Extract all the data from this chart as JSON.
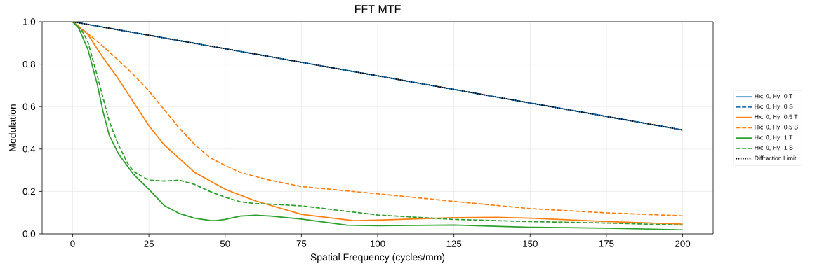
{
  "chart_data": {
    "type": "line",
    "title": "FFT MTF",
    "xlabel": "Spatial Frequency (cycles/mm)",
    "ylabel": "Modulation",
    "xlim": [
      -10,
      210
    ],
    "ylim": [
      0,
      1
    ],
    "xticks": [
      0,
      25,
      50,
      75,
      100,
      125,
      150,
      175,
      200
    ],
    "yticks": [
      {
        "value": 0,
        "label": "0.0"
      },
      {
        "value": 0.2,
        "label": "0.2"
      },
      {
        "value": 0.4,
        "label": "0.4"
      },
      {
        "value": 0.6,
        "label": "0.6"
      },
      {
        "value": 0.8,
        "label": "0.8"
      },
      {
        "value": 1,
        "label": "1.0"
      }
    ],
    "grid": true,
    "legend": "right",
    "series": [
      {
        "name": "Hx: 0, Hy: 0 T",
        "color": "#1f77b4",
        "line_style": "solid",
        "x": [
          0,
          50,
          100,
          150,
          200
        ],
        "values": [
          1,
          0.873,
          0.745,
          0.617,
          0.49
        ]
      },
      {
        "name": "Hx: 0, Hy: 0 S",
        "color": "#1f77b4",
        "line_style": "dashed",
        "x": [
          0,
          50,
          100,
          150,
          200
        ],
        "values": [
          1,
          0.873,
          0.745,
          0.617,
          0.49
        ]
      },
      {
        "name": "Hx: 0, Hy: 0.5 T",
        "color": "#ff7f0e",
        "line_style": "solid",
        "x": [
          0,
          5,
          10,
          15,
          20,
          25,
          30,
          40,
          50,
          60,
          75,
          92,
          100,
          125,
          139,
          150,
          175,
          200
        ],
        "values": [
          1,
          0.94,
          0.83,
          0.73,
          0.62,
          0.51,
          0.42,
          0.29,
          0.21,
          0.155,
          0.092,
          0.062,
          0.065,
          0.076,
          0.078,
          0.074,
          0.058,
          0.046
        ]
      },
      {
        "name": "Hx: 0, Hy: 0.5 S",
        "color": "#ff7f0e",
        "line_style": "dashed",
        "x": [
          0,
          5,
          10,
          15,
          20,
          25,
          30,
          35,
          40,
          45,
          50,
          55,
          60,
          65,
          75,
          100,
          125,
          150,
          175,
          200
        ],
        "values": [
          1,
          0.944,
          0.884,
          0.818,
          0.75,
          0.674,
          0.586,
          0.498,
          0.421,
          0.36,
          0.322,
          0.29,
          0.27,
          0.252,
          0.223,
          0.189,
          0.153,
          0.119,
          0.099,
          0.085
        ]
      },
      {
        "name": "Hx: 0, Hy: 1 T",
        "color": "#2ca02c",
        "line_style": "solid",
        "x": [
          0,
          2,
          5,
          8,
          10,
          12,
          15,
          20,
          25,
          30,
          35,
          40,
          45,
          47,
          50,
          55,
          60,
          65,
          75,
          90,
          100,
          125,
          150,
          175,
          200
        ],
        "values": [
          1,
          0.97,
          0.87,
          0.71,
          0.575,
          0.465,
          0.378,
          0.28,
          0.21,
          0.134,
          0.096,
          0.074,
          0.063,
          0.062,
          0.068,
          0.084,
          0.088,
          0.084,
          0.07,
          0.041,
          0.038,
          0.042,
          0.031,
          0.027,
          0.019
        ]
      },
      {
        "name": "Hx: 0, Hy: 1 S",
        "color": "#2ca02c",
        "line_style": "dashed",
        "x": [
          0,
          3,
          5,
          8,
          10,
          12,
          15,
          18,
          20,
          25,
          30,
          35,
          40,
          45,
          50,
          55,
          60,
          65,
          75,
          100,
          125,
          150,
          175,
          200
        ],
        "values": [
          1,
          0.96,
          0.905,
          0.75,
          0.64,
          0.53,
          0.42,
          0.333,
          0.294,
          0.253,
          0.249,
          0.253,
          0.233,
          0.2,
          0.173,
          0.151,
          0.143,
          0.14,
          0.132,
          0.089,
          0.068,
          0.058,
          0.051,
          0.041
        ]
      },
      {
        "name": "Diffraction Limit",
        "color": "#000000",
        "line_style": "dotted",
        "x": [
          0,
          50,
          100,
          150,
          200
        ],
        "values": [
          1,
          0.873,
          0.745,
          0.617,
          0.49
        ]
      }
    ]
  }
}
